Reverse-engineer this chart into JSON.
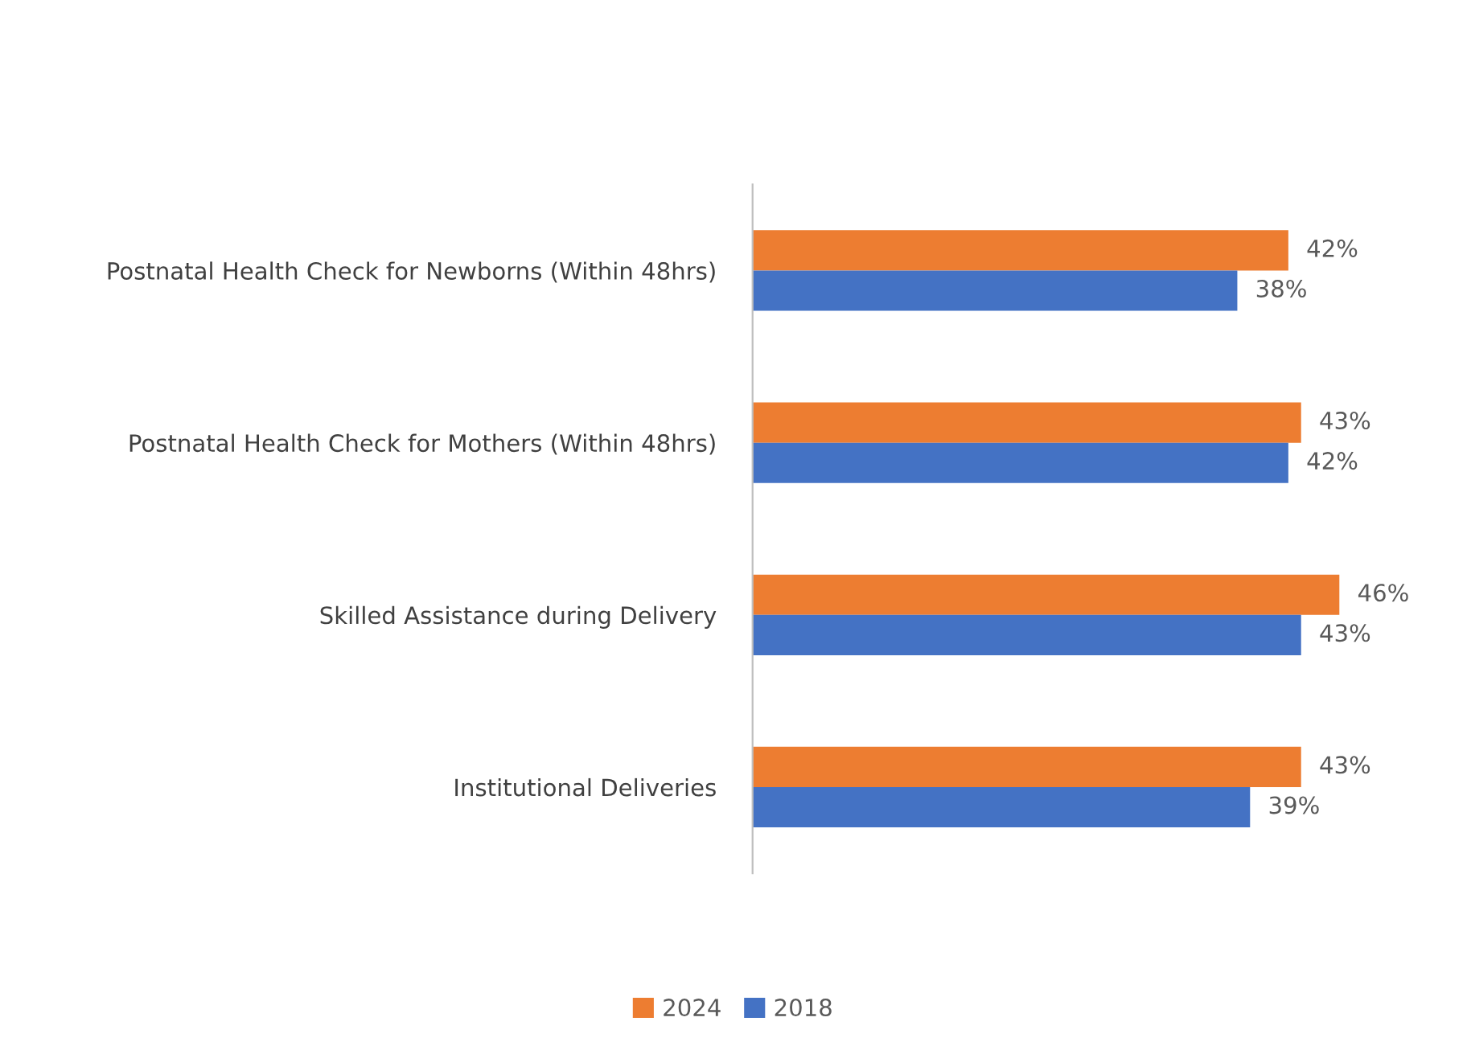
{
  "chart_data": {
    "type": "bar",
    "orientation": "horizontal",
    "categories": [
      "Postnatal Health Check for Newborns (Within 48hrs)",
      "Postnatal Health Check for Mothers (Within 48hrs)",
      "Skilled Assistance during Delivery",
      "Institutional Deliveries"
    ],
    "series": [
      {
        "name": "2024",
        "color": "#ed7d31",
        "values": [
          42,
          43,
          46,
          43
        ],
        "value_labels": [
          "42%",
          "43%",
          "46%",
          "43%"
        ]
      },
      {
        "name": "2018",
        "color": "#4472c4",
        "values": [
          38,
          42,
          43,
          39
        ],
        "value_labels": [
          "38%",
          "42%",
          "43%",
          "39%"
        ]
      }
    ],
    "tick_labels": "y",
    "grid": false,
    "legend": "bottom"
  }
}
